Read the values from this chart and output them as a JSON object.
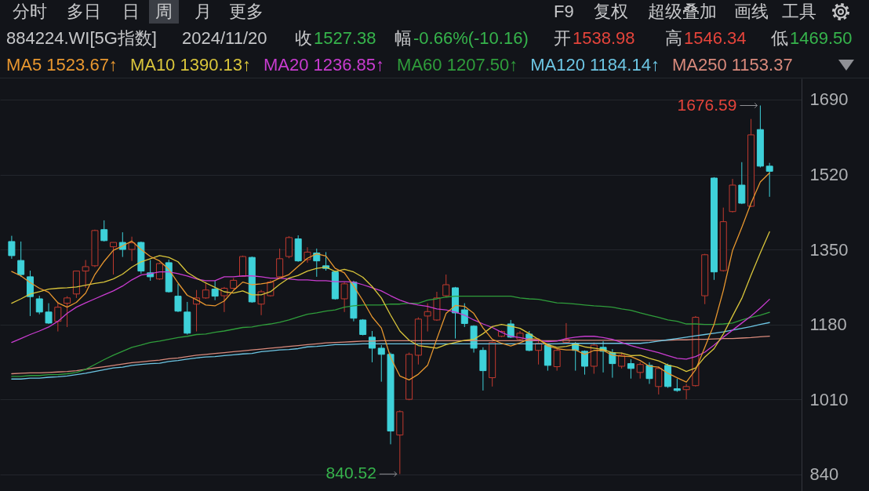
{
  "chart_data": {
    "type": "candlestick",
    "title": "884224.WI[5G指数]",
    "categories": [
      null,
      null,
      null,
      null,
      null,
      null,
      null,
      null,
      null,
      null,
      null,
      null,
      null,
      null,
      null,
      null,
      null,
      null,
      null,
      null,
      null,
      null,
      null,
      null,
      null,
      null,
      null,
      null,
      null,
      null,
      null,
      null,
      null,
      null,
      null,
      null,
      null,
      null,
      null,
      null,
      null,
      null,
      null,
      null,
      null,
      null,
      null,
      null,
      null,
      null,
      null,
      null,
      null,
      null,
      null,
      null,
      null,
      null,
      null,
      null,
      null,
      null,
      null,
      null,
      null,
      null,
      null,
      null,
      null,
      null,
      null,
      null,
      null,
      null,
      null,
      null,
      null,
      null,
      null,
      null,
      null,
      null,
      null
    ],
    "ohlc": [
      [
        1368,
        1381,
        1329,
        1336
      ],
      [
        1325,
        1368,
        1288,
        1293
      ],
      [
        1288,
        1302,
        1199,
        1243
      ],
      [
        1238,
        1245,
        1203,
        1208
      ],
      [
        1208,
        1228,
        1181,
        1183
      ],
      [
        1187,
        1231,
        1164,
        1219
      ],
      [
        1228,
        1244,
        1174,
        1240
      ],
      [
        1249,
        1302,
        1240,
        1301
      ],
      [
        1301,
        1326,
        1263,
        1311
      ],
      [
        1313,
        1395,
        1310,
        1393
      ],
      [
        1395,
        1416,
        1368,
        1370
      ],
      [
        1356,
        1366,
        1293,
        1366
      ],
      [
        1366,
        1389,
        1333,
        1350
      ],
      [
        1350,
        1379,
        1324,
        1365
      ],
      [
        1366,
        1368,
        1295,
        1301
      ],
      [
        1297,
        1326,
        1279,
        1288
      ],
      [
        1283,
        1320,
        1281,
        1318
      ],
      [
        1320,
        1327,
        1252,
        1254
      ],
      [
        1244,
        1272,
        1208,
        1210
      ],
      [
        1208,
        1231,
        1157,
        1160
      ],
      [
        1226,
        1258,
        1164,
        1240
      ],
      [
        1240,
        1276,
        1238,
        1258
      ],
      [
        1260,
        1279,
        1235,
        1244
      ],
      [
        1245,
        1265,
        1208,
        1262
      ],
      [
        1262,
        1285,
        1260,
        1280
      ],
      [
        1289,
        1336,
        1288,
        1334
      ],
      [
        1332,
        1334,
        1229,
        1231
      ],
      [
        1226,
        1258,
        1201,
        1254
      ],
      [
        1245,
        1280,
        1243,
        1276
      ],
      [
        1288,
        1352,
        1286,
        1329
      ],
      [
        1334,
        1380,
        1330,
        1377
      ],
      [
        1374,
        1382,
        1322,
        1324
      ],
      [
        1327,
        1355,
        1320,
        1344
      ],
      [
        1342,
        1352,
        1288,
        1324
      ],
      [
        1313,
        1344,
        1302,
        1307
      ],
      [
        1299,
        1302,
        1236,
        1238
      ],
      [
        1238,
        1276,
        1208,
        1272
      ],
      [
        1276,
        1279,
        1187,
        1194
      ],
      [
        1190,
        1192,
        1155,
        1157
      ],
      [
        1151,
        1165,
        1094,
        1126
      ],
      [
        1126,
        1133,
        1050,
        1112
      ],
      [
        1112,
        1116,
        908,
        938
      ],
      [
        929,
        985,
        840.52,
        982
      ],
      [
        1010,
        1116,
        1008,
        1112
      ],
      [
        1110,
        1196,
        1089,
        1192
      ],
      [
        1199,
        1228,
        1164,
        1209
      ],
      [
        1190,
        1254,
        1188,
        1240
      ],
      [
        1245,
        1293,
        1243,
        1270
      ],
      [
        1263,
        1265,
        1148,
        1206
      ],
      [
        1213,
        1228,
        1174,
        1182
      ],
      [
        1176,
        1178,
        1116,
        1126
      ],
      [
        1121,
        1128,
        1030,
        1075
      ],
      [
        1059,
        1141,
        1039,
        1139
      ],
      [
        1153,
        1166,
        1151,
        1164
      ],
      [
        1181,
        1190,
        1149,
        1151
      ],
      [
        1146,
        1165,
        1142,
        1160
      ],
      [
        1158,
        1165,
        1119,
        1121
      ],
      [
        1121,
        1146,
        1089,
        1137
      ],
      [
        1133,
        1135,
        1075,
        1087
      ],
      [
        1084,
        1124,
        1075,
        1121
      ],
      [
        1139,
        1183,
        1137,
        1146
      ],
      [
        1137,
        1140,
        1075,
        1121
      ],
      [
        1119,
        1121,
        1066,
        1085
      ],
      [
        1085,
        1139,
        1068,
        1133
      ],
      [
        1128,
        1142,
        1071,
        1119
      ],
      [
        1116,
        1124,
        1059,
        1091
      ],
      [
        1085,
        1116,
        1080,
        1110
      ],
      [
        1091,
        1101,
        1057,
        1080
      ],
      [
        1071,
        1094,
        1057,
        1089
      ],
      [
        1087,
        1094,
        1045,
        1057
      ],
      [
        1039,
        1085,
        1021,
        1080
      ],
      [
        1087,
        1091,
        1036,
        1039
      ],
      [
        1034,
        1057,
        1027,
        1030
      ],
      [
        1032,
        1045,
        1010,
        1039
      ],
      [
        1041,
        1199,
        1039,
        1196
      ],
      [
        1245,
        1340,
        1226,
        1338
      ],
      [
        1512,
        1514,
        1281,
        1299
      ],
      [
        1302,
        1445,
        1300,
        1413
      ],
      [
        1436,
        1510,
        1434,
        1496
      ],
      [
        1496,
        1548,
        1453,
        1455
      ],
      [
        1448,
        1646,
        1446,
        1610
      ],
      [
        1622,
        1676.59,
        1536,
        1539
      ],
      [
        1538.98,
        1546.34,
        1469.5,
        1527.38
      ]
    ],
    "colors": [
      "#3ed1d9",
      "#3ed1d9",
      "#3ed1d9",
      "#3ed1d9",
      "#3ed1d9",
      "#c23a2f",
      "#c23a2f",
      "#c23a2f",
      "#c23a2f",
      "#c23a2f",
      "#3ed1d9",
      "#c23a2f",
      "#3ed1d9",
      "#c23a2f",
      "#3ed1d9",
      "#3ed1d9",
      "#c23a2f",
      "#3ed1d9",
      "#3ed1d9",
      "#3ed1d9",
      "#c23a2f",
      "#c23a2f",
      "#3ed1d9",
      "#c23a2f",
      "#c23a2f",
      "#c23a2f",
      "#3ed1d9",
      "#c23a2f",
      "#c23a2f",
      "#c23a2f",
      "#c23a2f",
      "#3ed1d9",
      "#c23a2f",
      "#3ed1d9",
      "#3ed1d9",
      "#3ed1d9",
      "#c23a2f",
      "#3ed1d9",
      "#3ed1d9",
      "#3ed1d9",
      "#3ed1d9",
      "#3ed1d9",
      "#c23a2f",
      "#c23a2f",
      "#c23a2f",
      "#c23a2f",
      "#c23a2f",
      "#c23a2f",
      "#3ed1d9",
      "#3ed1d9",
      "#3ed1d9",
      "#3ed1d9",
      "#c23a2f",
      "#c23a2f",
      "#3ed1d9",
      "#c23a2f",
      "#3ed1d9",
      "#c23a2f",
      "#3ed1d9",
      "#c23a2f",
      "#c23a2f",
      "#3ed1d9",
      "#3ed1d9",
      "#c23a2f",
      "#3ed1d9",
      "#3ed1d9",
      "#c23a2f",
      "#3ed1d9",
      "#c23a2f",
      "#3ed1d9",
      "#c23a2f",
      "#3ed1d9",
      "#3ed1d9",
      "#c23a2f",
      "#c23a2f",
      "#c23a2f",
      "#3ed1d9",
      "#c23a2f",
      "#c23a2f",
      "#3ed1d9",
      "#c23a2f",
      "#3ed1d9",
      "#3ed1d9"
    ],
    "series": [
      {
        "name": "MA5 1523.67↑",
        "type": "line",
        "color": "#e8972f",
        "values": [
          1300,
          1290,
          1275,
          1262,
          1253,
          1229,
          1219,
          1230,
          1251,
          1293,
          1323,
          1348,
          1358,
          1369,
          1350,
          1334,
          1324,
          1305,
          1274,
          1246,
          1236,
          1224,
          1222,
          1233,
          1257,
          1276,
          1270,
          1272,
          1275,
          1285,
          1293,
          1312,
          1330,
          1340,
          1335,
          1307,
          1297,
          1267,
          1234,
          1197,
          1172,
          1105,
          1063,
          1054,
          1067,
          1087,
          1147,
          1205,
          1223,
          1221,
          1205,
          1172,
          1146,
          1137,
          1131,
          1138,
          1147,
          1147,
          1131,
          1125,
          1122,
          1122,
          1112,
          1121,
          1121,
          1110,
          1108,
          1107,
          1098,
          1085,
          1083,
          1069,
          1059,
          1049,
          1077,
          1128,
          1180,
          1257,
          1348,
          1400,
          1455,
          1503,
          1523.67
        ]
      },
      {
        "name": "MA10 1390.13↑",
        "type": "line",
        "color": "#d9c53b",
        "values": [
          1228,
          1238,
          1249,
          1254,
          1260,
          1262,
          1263,
          1265,
          1269,
          1273,
          1276,
          1283,
          1294,
          1310,
          1322,
          1329,
          1336,
          1332,
          1322,
          1298,
          1285,
          1274,
          1264,
          1254,
          1251,
          1256,
          1247,
          1247,
          1254,
          1271,
          1285,
          1291,
          1301,
          1307,
          1310,
          1300,
          1305,
          1299,
          1287,
          1266,
          1240,
          1201,
          1165,
          1144,
          1132,
          1129,
          1126,
          1134,
          1139,
          1144,
          1146,
          1159,
          1175,
          1180,
          1176,
          1171,
          1159,
          1146,
          1134,
          1128,
          1130,
          1135,
          1129,
          1126,
          1123,
          1116,
          1115,
          1109,
          1110,
          1103,
          1097,
          1088,
          1083,
          1073,
          1081,
          1106,
          1125,
          1158,
          1199,
          1239,
          1292,
          1342,
          1390.13
        ]
      },
      {
        "name": "MA20 1236.85↑",
        "type": "line",
        "color": "#c93cd0",
        "values": [
          1139,
          1148,
          1157,
          1165,
          1174,
          1187,
          1205,
          1219,
          1229,
          1238,
          1247,
          1256,
          1267,
          1281,
          1292,
          1295,
          1299,
          1299,
          1295,
          1290,
          1283,
          1279,
          1279,
          1288,
          1288,
          1290,
          1290,
          1288,
          1285,
          1285,
          1283,
          1281,
          1281,
          1279,
          1279,
          1277,
          1277,
          1276,
          1270,
          1263,
          1256,
          1245,
          1235,
          1228,
          1224,
          1221,
          1215,
          1213,
          1208,
          1201,
          1190,
          1181,
          1173,
          1162,
          1153,
          1150,
          1146,
          1144,
          1141,
          1142,
          1148,
          1151,
          1153,
          1153,
          1150,
          1146,
          1139,
          1132,
          1126,
          1121,
          1116,
          1109,
          1103,
          1101,
          1107,
          1117,
          1133,
          1151,
          1167,
          1183,
          1199,
          1217,
          1236.85
        ]
      },
      {
        "name": "MA60 1207.50↑",
        "type": "line",
        "color": "#2f9d3b",
        "values": [
          1062,
          1062,
          1064,
          1064,
          1066,
          1066,
          1068,
          1071,
          1078,
          1089,
          1100,
          1110,
          1119,
          1128,
          1133,
          1139,
          1142,
          1146,
          1150,
          1153,
          1157,
          1158,
          1162,
          1165,
          1169,
          1173,
          1174,
          1178,
          1181,
          1185,
          1190,
          1197,
          1203,
          1206,
          1210,
          1213,
          1219,
          1222,
          1224,
          1224,
          1224,
          1226,
          1226,
          1228,
          1228,
          1235,
          1238,
          1242,
          1244,
          1244,
          1244,
          1244,
          1244,
          1244,
          1244,
          1240,
          1238,
          1237,
          1233,
          1229,
          1228,
          1226,
          1224,
          1222,
          1221,
          1219,
          1215,
          1212,
          1206,
          1201,
          1196,
          1190,
          1187,
          1181,
          1181,
          1180,
          1180,
          1181,
          1183,
          1190,
          1196,
          1201,
          1207.5
        ]
      },
      {
        "name": "MA120 1184.14↑",
        "type": "line",
        "color": "#6dc6e4",
        "values": [
          1056,
          1056,
          1058,
          1058,
          1060,
          1061,
          1063,
          1066,
          1069,
          1073,
          1077,
          1081,
          1083,
          1087,
          1089,
          1091,
          1092,
          1096,
          1098,
          1101,
          1104,
          1106,
          1107,
          1109,
          1111,
          1113,
          1114,
          1118,
          1120,
          1122,
          1123,
          1125,
          1129,
          1130,
          1132,
          1134,
          1134,
          1135,
          1136,
          1136,
          1136,
          1136,
          1136,
          1136,
          1136,
          1136,
          1136,
          1136,
          1136,
          1136,
          1136,
          1136,
          1136,
          1136,
          1136,
          1136,
          1136,
          1136,
          1136,
          1136,
          1137,
          1137,
          1137,
          1137,
          1137,
          1137,
          1137,
          1137,
          1137,
          1139,
          1142,
          1145,
          1148,
          1151,
          1154,
          1157,
          1160,
          1163,
          1167,
          1171,
          1175,
          1180,
          1184.14
        ]
      },
      {
        "name": "MA250 1153.37",
        "type": "line",
        "color": "#d98a7c",
        "values": [
          1068,
          1069,
          1070,
          1070,
          1071,
          1072,
          1073,
          1075,
          1078,
          1081,
          1084,
          1087,
          1090,
          1093,
          1095,
          1097,
          1099,
          1102,
          1104,
          1107,
          1110,
          1112,
          1114,
          1116,
          1118,
          1120,
          1122,
          1124,
          1126,
          1128,
          1130,
          1132,
          1134,
          1136,
          1138,
          1139,
          1140,
          1141,
          1142,
          1142,
          1143,
          1143,
          1143,
          1143,
          1143,
          1143,
          1143,
          1143,
          1143,
          1143,
          1143,
          1143,
          1143,
          1143,
          1143,
          1143,
          1143,
          1143,
          1143,
          1143,
          1144,
          1144,
          1144,
          1144,
          1144,
          1144,
          1144,
          1144,
          1144,
          1144,
          1144,
          1144,
          1145,
          1145,
          1146,
          1146,
          1147,
          1148,
          1148,
          1149,
          1150,
          1152,
          1153.37
        ]
      }
    ],
    "ylim": [
      802,
      1738
    ],
    "yticks": [
      840,
      1010,
      1180,
      1350,
      1520,
      1690
    ],
    "grid": "y",
    "legend": "top left",
    "tick_labels": "y",
    "annotations": [
      "分时",
      "多日",
      "日",
      "周",
      "月",
      "更多",
      "F9",
      "复权",
      "超级叠加",
      "画线",
      "工具",
      "2024/11/20",
      "收",
      "1527.38",
      "幅",
      "-0.66%(-10.16)",
      "开",
      "1538.98",
      "高",
      "1546.34",
      "低",
      "1469.50",
      "1676.59",
      "840.52"
    ]
  }
}
